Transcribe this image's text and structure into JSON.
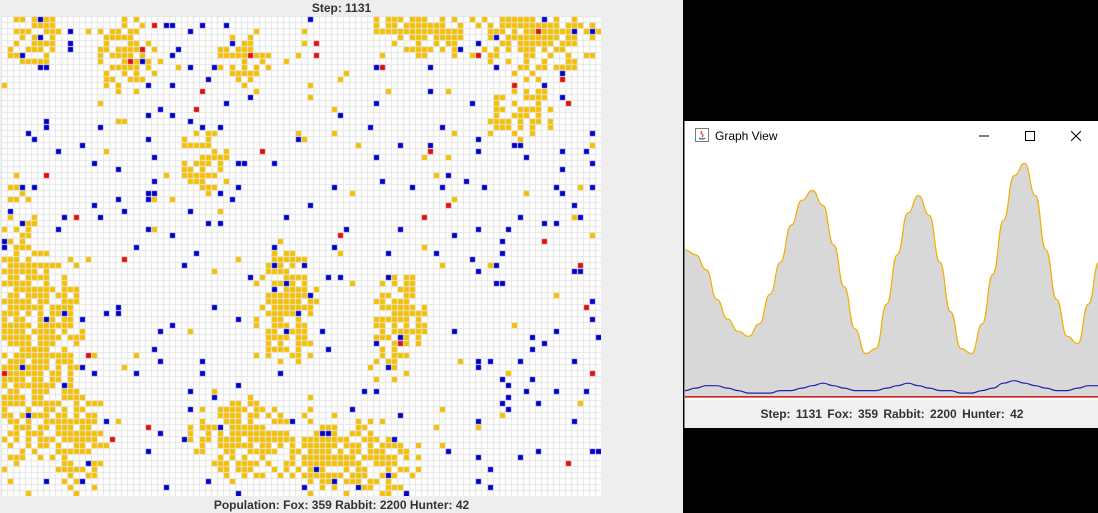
{
  "simulator": {
    "step_label": "Step: 1131",
    "population_label": "Population: Fox: 359 Rabbit: 2200 Hunter: 42",
    "colors": {
      "rabbit": "#f5c000",
      "fox": "#0000cc",
      "hunter": "#e01010",
      "empty": "#ffffff",
      "gridline": "#e4e4e4"
    }
  },
  "graph_window": {
    "title": "Graph View",
    "status": {
      "step_label": "Step:",
      "step_value": "1131",
      "fox_label": "Fox:",
      "fox_value": "359",
      "rabbit_label": "Rabbit:",
      "rabbit_value": "2200",
      "hunter_label": "Hunter:",
      "hunter_value": "42"
    },
    "colors": {
      "rabbit_line": "#f0b000",
      "fox_line": "#2020b0",
      "hunter_line": "#d02020",
      "fill": "#d8d8d8"
    }
  },
  "chart_data": {
    "type": "line",
    "series": [
      {
        "name": "Rabbit",
        "values": [
          0.6,
          0.58,
          0.52,
          0.4,
          0.32,
          0.27,
          0.25,
          0.3,
          0.42,
          0.55,
          0.7,
          0.8,
          0.84,
          0.78,
          0.62,
          0.45,
          0.28,
          0.18,
          0.2,
          0.38,
          0.58,
          0.75,
          0.82,
          0.74,
          0.55,
          0.35,
          0.2,
          0.18,
          0.3,
          0.5,
          0.72,
          0.9,
          0.95,
          0.82,
          0.6,
          0.4,
          0.25,
          0.22,
          0.38,
          0.55
        ]
      },
      {
        "name": "Fox",
        "values": [
          0.03,
          0.04,
          0.05,
          0.05,
          0.04,
          0.03,
          0.02,
          0.02,
          0.02,
          0.03,
          0.03,
          0.04,
          0.05,
          0.06,
          0.05,
          0.04,
          0.03,
          0.03,
          0.03,
          0.04,
          0.05,
          0.06,
          0.05,
          0.04,
          0.03,
          0.03,
          0.02,
          0.02,
          0.03,
          0.04,
          0.06,
          0.07,
          0.06,
          0.05,
          0.04,
          0.03,
          0.03,
          0.04,
          0.05,
          0.05
        ]
      },
      {
        "name": "Hunter",
        "values": [
          0.005,
          0.005,
          0.005,
          0.005,
          0.005,
          0.005,
          0.005,
          0.005,
          0.005,
          0.005,
          0.005,
          0.005,
          0.005,
          0.005,
          0.005,
          0.005,
          0.005,
          0.005,
          0.005,
          0.005,
          0.005,
          0.005,
          0.005,
          0.005,
          0.005,
          0.005,
          0.005,
          0.005,
          0.005,
          0.005,
          0.005,
          0.005,
          0.005,
          0.005,
          0.005,
          0.005,
          0.005,
          0.005,
          0.005,
          0.005
        ]
      }
    ],
    "grid": false
  }
}
